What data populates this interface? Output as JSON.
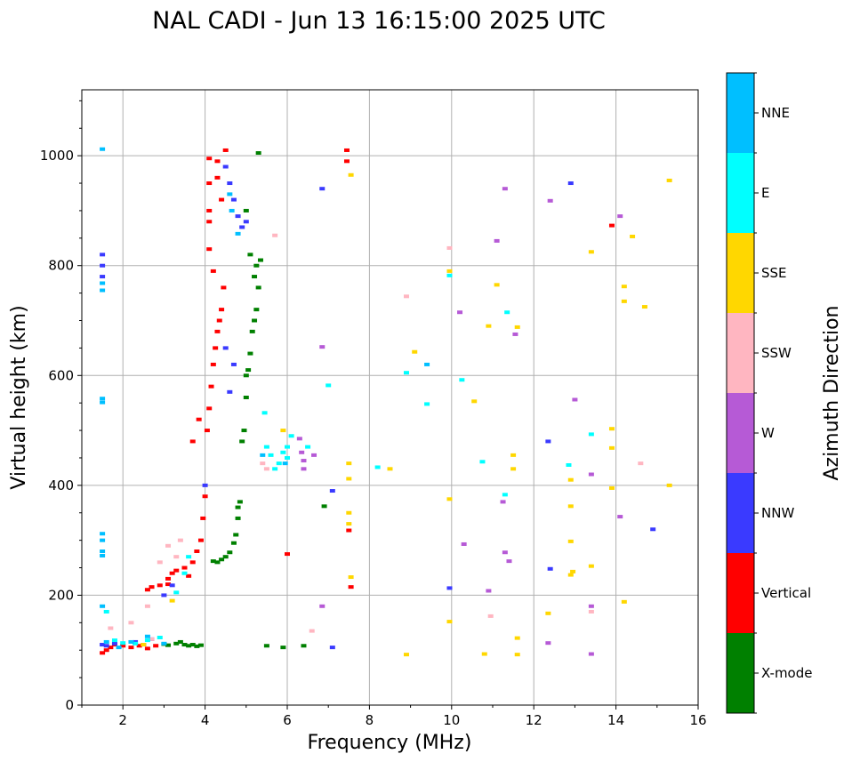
{
  "chart_data": {
    "type": "scatter",
    "title": "NAL CADI - Jun 13 16:15:00 2025 UTC",
    "xlabel": "Frequency (MHz)",
    "ylabel": "Virtual height (km)",
    "xlim": [
      1,
      16
    ],
    "ylim": [
      0,
      1120
    ],
    "xticks": [
      2,
      4,
      6,
      8,
      10,
      12,
      14,
      16
    ],
    "yticks": [
      0,
      200,
      400,
      600,
      800,
      1000
    ],
    "grid": true,
    "colorbar": {
      "title": "Azimuth Direction",
      "categories": [
        "X-mode",
        "Vertical",
        "NNW",
        "W",
        "SSW",
        "SSE",
        "E",
        "NNE"
      ],
      "colors": [
        "#008000",
        "#ff0000",
        "#3a3aff",
        "#b65ad6",
        "#ffb6c1",
        "#ffd700",
        "#00ffff",
        "#00bfff"
      ]
    },
    "series": [
      {
        "name": "X-mode",
        "points": [
          [
            3.5,
            110
          ],
          [
            3.6,
            108
          ],
          [
            3.7,
            110
          ],
          [
            3.8,
            107
          ],
          [
            3.9,
            109
          ],
          [
            3.3,
            112
          ],
          [
            3.4,
            115
          ],
          [
            3.1,
            109
          ],
          [
            3.0,
            111
          ],
          [
            4.2,
            262
          ],
          [
            4.3,
            260
          ],
          [
            4.4,
            265
          ],
          [
            4.5,
            270
          ],
          [
            4.6,
            278
          ],
          [
            4.7,
            295
          ],
          [
            4.75,
            310
          ],
          [
            4.8,
            340
          ],
          [
            4.8,
            360
          ],
          [
            4.85,
            370
          ],
          [
            4.9,
            480
          ],
          [
            4.95,
            500
          ],
          [
            5.0,
            560
          ],
          [
            5.0,
            600
          ],
          [
            5.05,
            610
          ],
          [
            5.1,
            640
          ],
          [
            5.15,
            680
          ],
          [
            5.2,
            700
          ],
          [
            5.25,
            720
          ],
          [
            5.3,
            760
          ],
          [
            5.2,
            780
          ],
          [
            5.25,
            800
          ],
          [
            5.1,
            820
          ],
          [
            5.35,
            810
          ],
          [
            5.0,
            900
          ],
          [
            5.3,
            1005
          ],
          [
            5.5,
            108
          ],
          [
            5.9,
            105
          ],
          [
            6.4,
            108
          ],
          [
            6.9,
            362
          ]
        ]
      },
      {
        "name": "Vertical",
        "points": [
          [
            1.5,
            95
          ],
          [
            1.6,
            100
          ],
          [
            1.7,
            105
          ],
          [
            1.8,
            110
          ],
          [
            2.0,
            108
          ],
          [
            2.2,
            105
          ],
          [
            2.4,
            108
          ],
          [
            2.5,
            110
          ],
          [
            2.6,
            103
          ],
          [
            2.8,
            108
          ],
          [
            2.6,
            210
          ],
          [
            2.7,
            215
          ],
          [
            2.9,
            218
          ],
          [
            3.1,
            220
          ],
          [
            3.1,
            230
          ],
          [
            3.2,
            240
          ],
          [
            3.3,
            245
          ],
          [
            3.5,
            250
          ],
          [
            3.6,
            235
          ],
          [
            3.7,
            260
          ],
          [
            3.8,
            280
          ],
          [
            3.9,
            300
          ],
          [
            3.95,
            340
          ],
          [
            4.0,
            380
          ],
          [
            3.85,
            520
          ],
          [
            3.7,
            480
          ],
          [
            4.05,
            500
          ],
          [
            4.1,
            540
          ],
          [
            4.15,
            580
          ],
          [
            4.2,
            620
          ],
          [
            4.25,
            650
          ],
          [
            4.3,
            680
          ],
          [
            4.35,
            700
          ],
          [
            4.4,
            720
          ],
          [
            4.45,
            760
          ],
          [
            4.2,
            790
          ],
          [
            4.1,
            830
          ],
          [
            4.1,
            880
          ],
          [
            4.1,
            900
          ],
          [
            4.1,
            950
          ],
          [
            4.1,
            995
          ],
          [
            4.3,
            990
          ],
          [
            4.3,
            960
          ],
          [
            4.5,
            1010
          ],
          [
            4.4,
            920
          ],
          [
            6.0,
            275
          ],
          [
            7.45,
            1010
          ],
          [
            7.45,
            990
          ],
          [
            7.5,
            318
          ],
          [
            7.55,
            215
          ],
          [
            13.9,
            873
          ]
        ]
      },
      {
        "name": "NNW",
        "points": [
          [
            1.5,
            110
          ],
          [
            1.6,
            108
          ],
          [
            1.8,
            112
          ],
          [
            2.3,
            115
          ],
          [
            2.7,
            120
          ],
          [
            3.0,
            200
          ],
          [
            3.2,
            218
          ],
          [
            4.0,
            400
          ],
          [
            4.5,
            650
          ],
          [
            4.6,
            570
          ],
          [
            4.7,
            620
          ],
          [
            4.5,
            980
          ],
          [
            4.6,
            950
          ],
          [
            4.7,
            920
          ],
          [
            4.8,
            890
          ],
          [
            4.9,
            870
          ],
          [
            5.0,
            880
          ],
          [
            1.5,
            780
          ],
          [
            1.5,
            800
          ],
          [
            1.5,
            820
          ],
          [
            6.85,
            940
          ],
          [
            7.1,
            390
          ],
          [
            7.1,
            105
          ],
          [
            9.95,
            213
          ],
          [
            12.35,
            480
          ],
          [
            12.4,
            248
          ],
          [
            12.9,
            950
          ],
          [
            14.9,
            320
          ]
        ]
      },
      {
        "name": "W",
        "points": [
          [
            6.3,
            485
          ],
          [
            6.35,
            460
          ],
          [
            6.4,
            445
          ],
          [
            6.4,
            430
          ],
          [
            6.65,
            455
          ],
          [
            6.85,
            180
          ],
          [
            6.85,
            652
          ],
          [
            10.2,
            715
          ],
          [
            10.3,
            293
          ],
          [
            10.9,
            208
          ],
          [
            11.1,
            845
          ],
          [
            11.3,
            940
          ],
          [
            11.3,
            278
          ],
          [
            11.4,
            262
          ],
          [
            11.55,
            675
          ],
          [
            12.35,
            113
          ],
          [
            12.4,
            918
          ],
          [
            13.0,
            556
          ],
          [
            13.4,
            420
          ],
          [
            13.4,
            180
          ],
          [
            13.4,
            93
          ],
          [
            14.1,
            890
          ],
          [
            14.1,
            343
          ],
          [
            11.25,
            370
          ]
        ]
      },
      {
        "name": "SSW",
        "points": [
          [
            1.7,
            140
          ],
          [
            2.2,
            150
          ],
          [
            2.6,
            180
          ],
          [
            2.7,
            120
          ],
          [
            2.9,
            260
          ],
          [
            3.1,
            290
          ],
          [
            3.3,
            270
          ],
          [
            3.4,
            300
          ],
          [
            5.4,
            440
          ],
          [
            5.5,
            430
          ],
          [
            5.7,
            855
          ],
          [
            6.6,
            135
          ],
          [
            8.9,
            744
          ],
          [
            9.95,
            832
          ],
          [
            10.95,
            162
          ],
          [
            13.4,
            170
          ],
          [
            14.6,
            440
          ]
        ]
      },
      {
        "name": "SSE",
        "points": [
          [
            2.5,
            110
          ],
          [
            3.2,
            190
          ],
          [
            5.9,
            500
          ],
          [
            7.5,
            440
          ],
          [
            7.5,
            412
          ],
          [
            7.5,
            350
          ],
          [
            7.5,
            330
          ],
          [
            7.55,
            233
          ],
          [
            7.55,
            965
          ],
          [
            8.5,
            430
          ],
          [
            8.9,
            92
          ],
          [
            9.1,
            643
          ],
          [
            9.95,
            375
          ],
          [
            9.95,
            790
          ],
          [
            9.95,
            152
          ],
          [
            10.55,
            553
          ],
          [
            10.8,
            93
          ],
          [
            10.9,
            690
          ],
          [
            11.1,
            765
          ],
          [
            11.5,
            455
          ],
          [
            11.5,
            430
          ],
          [
            11.6,
            688
          ],
          [
            11.6,
            122
          ],
          [
            11.6,
            92
          ],
          [
            12.35,
            167
          ],
          [
            12.9,
            410
          ],
          [
            12.9,
            362
          ],
          [
            12.9,
            298
          ],
          [
            12.95,
            243
          ],
          [
            12.9,
            237
          ],
          [
            13.4,
            825
          ],
          [
            13.4,
            253
          ],
          [
            13.9,
            503
          ],
          [
            13.9,
            468
          ],
          [
            13.9,
            395
          ],
          [
            14.2,
            762
          ],
          [
            14.2,
            735
          ],
          [
            14.2,
            188
          ],
          [
            14.4,
            853
          ],
          [
            14.7,
            725
          ],
          [
            15.3,
            955
          ],
          [
            15.3,
            400
          ]
        ]
      },
      {
        "name": "E",
        "points": [
          [
            1.6,
            170
          ],
          [
            1.8,
            118
          ],
          [
            2.0,
            113
          ],
          [
            2.3,
            112
          ],
          [
            2.6,
            118
          ],
          [
            2.9,
            123
          ],
          [
            3.3,
            205
          ],
          [
            3.5,
            240
          ],
          [
            3.6,
            270
          ],
          [
            5.5,
            470
          ],
          [
            5.6,
            455
          ],
          [
            5.7,
            430
          ],
          [
            5.8,
            440
          ],
          [
            5.9,
            460
          ],
          [
            6.0,
            470
          ],
          [
            6.0,
            450
          ],
          [
            6.1,
            490
          ],
          [
            6.5,
            470
          ],
          [
            7.0,
            582
          ],
          [
            8.2,
            433
          ],
          [
            8.9,
            605
          ],
          [
            9.4,
            548
          ],
          [
            9.95,
            782
          ],
          [
            10.25,
            592
          ],
          [
            10.75,
            443
          ],
          [
            11.3,
            383
          ],
          [
            11.35,
            715
          ],
          [
            12.85,
            437
          ],
          [
            13.4,
            493
          ],
          [
            5.45,
            532
          ]
        ]
      },
      {
        "name": "NNE",
        "points": [
          [
            1.5,
            1012
          ],
          [
            1.5,
            768
          ],
          [
            1.5,
            755
          ],
          [
            1.5,
            558
          ],
          [
            1.5,
            551
          ],
          [
            1.5,
            312
          ],
          [
            1.5,
            300
          ],
          [
            1.5,
            280
          ],
          [
            1.5,
            272
          ],
          [
            1.5,
            180
          ],
          [
            1.6,
            115
          ],
          [
            1.9,
            105
          ],
          [
            2.2,
            115
          ],
          [
            2.6,
            125
          ],
          [
            3.0,
            112
          ],
          [
            4.6,
            930
          ],
          [
            4.65,
            900
          ],
          [
            4.8,
            858
          ],
          [
            5.4,
            455
          ],
          [
            5.95,
            440
          ],
          [
            9.4,
            620
          ]
        ]
      }
    ]
  }
}
